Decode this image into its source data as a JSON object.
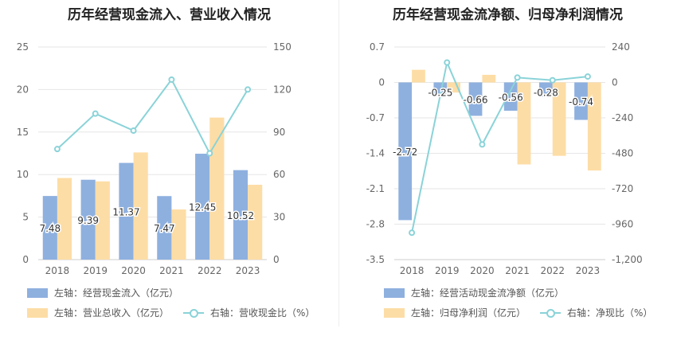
{
  "colors": {
    "bar_primary": "#8eb0df",
    "bar_secondary": "#fddda6",
    "line": "#8ad3d8",
    "grid": "#e6e6e6",
    "axis_text": "#666666"
  },
  "chart_data": [
    {
      "type": "bar",
      "title": "历年经营现金流入、营业收入情况",
      "categories": [
        "2018",
        "2019",
        "2020",
        "2021",
        "2022",
        "2023"
      ],
      "left_axis": {
        "ticks": [
          "0",
          "5",
          "10",
          "15",
          "20",
          "25"
        ],
        "ylim": [
          0,
          25
        ]
      },
      "right_axis": {
        "ticks": [
          "0",
          "30",
          "60",
          "90",
          "120",
          "150"
        ],
        "ylim": [
          0,
          150
        ]
      },
      "grid": true,
      "series": [
        {
          "name": "左轴：经营现金流入（亿元）",
          "type": "bar",
          "axis": "left",
          "color": "#8eb0df",
          "values": [
            7.48,
            9.39,
            11.37,
            7.47,
            12.45,
            10.52
          ],
          "labels": [
            "7.48",
            "9.39",
            "11.37",
            "7.47",
            "12.45",
            "10.52"
          ]
        },
        {
          "name": "左轴：营业总收入（亿元）",
          "type": "bar",
          "axis": "left",
          "color": "#fddda6",
          "values": [
            9.6,
            9.2,
            12.6,
            5.9,
            16.7,
            8.8
          ]
        },
        {
          "name": "右轴：营收现金比（%）",
          "type": "line",
          "axis": "right",
          "color": "#8ad3d8",
          "values": [
            78,
            103,
            91,
            127,
            75,
            120
          ]
        }
      ],
      "legend": {
        "placement": "bottom"
      }
    },
    {
      "type": "bar",
      "title": "历年经营现金流净额、归母净利润情况",
      "categories": [
        "2018",
        "2019",
        "2020",
        "2021",
        "2022",
        "2023"
      ],
      "left_axis": {
        "ticks": [
          "-3.5",
          "-2.8",
          "-2.1",
          "-1.4",
          "-0.7",
          "0",
          "0.7"
        ],
        "ylim": [
          -3.5,
          0.7
        ]
      },
      "right_axis": {
        "ticks": [
          "-1,200",
          "-960",
          "-720",
          "-480",
          "-240",
          "0",
          "240"
        ],
        "ylim": [
          -1200,
          240
        ]
      },
      "grid": true,
      "series": [
        {
          "name": "左轴：经营活动现金流净额（亿元）",
          "type": "bar",
          "axis": "left",
          "color": "#8eb0df",
          "values": [
            -2.72,
            -0.25,
            -0.66,
            -0.56,
            -0.28,
            -0.74
          ],
          "labels": [
            "-2.72",
            "-0.25",
            "-0.66",
            "-0.56",
            "-0.28",
            "-0.74"
          ]
        },
        {
          "name": "左轴：归母净利润（亿元）",
          "type": "bar",
          "axis": "left",
          "color": "#fddda6",
          "values": [
            0.25,
            -0.2,
            0.15,
            -1.62,
            -1.45,
            -1.74
          ]
        },
        {
          "name": "右轴：净现比（%）",
          "type": "line",
          "axis": "right",
          "color": "#8ad3d8",
          "values": [
            -1018,
            135,
            -420,
            33,
            15,
            40
          ]
        }
      ],
      "legend": {
        "placement": "bottom"
      }
    }
  ]
}
